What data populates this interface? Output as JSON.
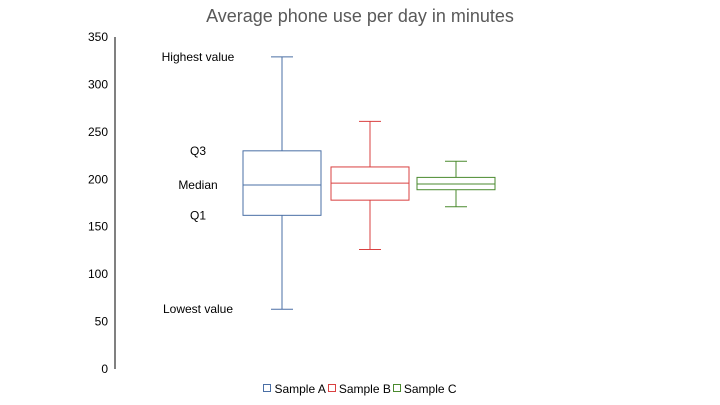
{
  "chart_data": {
    "type": "boxplot",
    "title": "Average phone use per day in minutes",
    "ylim": [
      0,
      350
    ],
    "yticks": [
      0,
      50,
      100,
      150,
      200,
      250,
      300,
      350
    ],
    "grid": false,
    "legend_position": "bottom",
    "series": [
      {
        "name": "Sample A",
        "color": "#4a6fa5",
        "min": 63,
        "q1": 162,
        "median": 194,
        "q3": 230,
        "max": 329
      },
      {
        "name": "Sample B",
        "color": "#d94040",
        "min": 126,
        "q1": 178,
        "median": 196,
        "q3": 213,
        "max": 261
      },
      {
        "name": "Sample C",
        "color": "#4a8a2e",
        "min": 171,
        "q1": 189,
        "median": 195,
        "q3": 202,
        "max": 219
      }
    ],
    "annotations": [
      {
        "text": "Highest value",
        "y": 329
      },
      {
        "text": "Q3",
        "y": 230
      },
      {
        "text": "Median",
        "y": 194
      },
      {
        "text": "Q1",
        "y": 162
      },
      {
        "text": "Lowest value",
        "y": 63
      }
    ]
  }
}
